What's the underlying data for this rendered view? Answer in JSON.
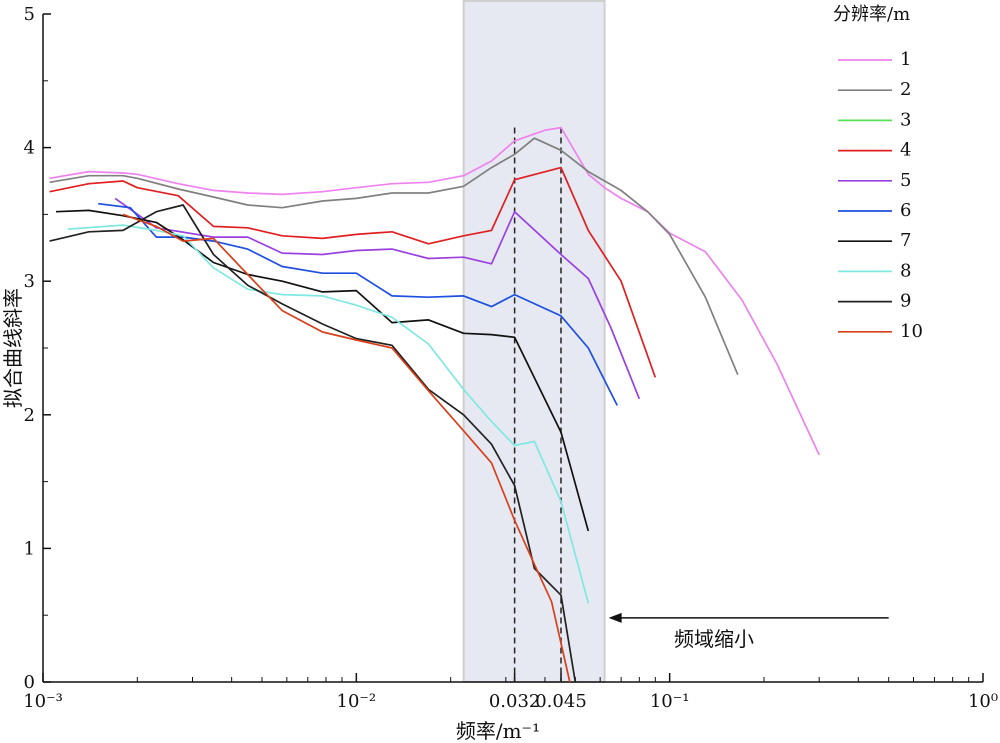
{
  "chart_data": {
    "type": "line",
    "x_scale": "log",
    "xlim": [
      0.001,
      1
    ],
    "ylim": [
      0,
      5
    ],
    "xlabel": "频率/m⁻¹",
    "ylabel": "拟合曲线斜率",
    "legend_title": "分辨率/m",
    "legend_position": "top-right",
    "grid": false,
    "x_ticks": [
      {
        "value": 0.001,
        "label": "10⁻³"
      },
      {
        "value": 0.01,
        "label": "10⁻²"
      },
      {
        "value": 0.032,
        "label": "0.032"
      },
      {
        "value": 0.045,
        "label": "0.045"
      },
      {
        "value": 0.1,
        "label": "10⁻¹"
      },
      {
        "value": 1,
        "label": "10⁰"
      }
    ],
    "y_ticks": [
      0,
      1,
      2,
      3,
      4,
      5
    ],
    "highlight_band": {
      "x_from": 0.022,
      "x_to": 0.062,
      "color": "#e6e9f2"
    },
    "vlines": [
      0.032,
      0.045
    ],
    "annotation": {
      "text": "频域缩小",
      "arrow_from_x": 0.5,
      "arrow_to_x": 0.062,
      "y": 0.48
    },
    "series": [
      {
        "name": "1",
        "color": "#ee82ee",
        "points": [
          [
            0.00105,
            3.77
          ],
          [
            0.0014,
            3.82
          ],
          [
            0.0018,
            3.81
          ],
          [
            0.002,
            3.8
          ],
          [
            0.0027,
            3.73
          ],
          [
            0.0035,
            3.68
          ],
          [
            0.0045,
            3.66
          ],
          [
            0.0058,
            3.65
          ],
          [
            0.0078,
            3.67
          ],
          [
            0.01,
            3.7
          ],
          [
            0.013,
            3.73
          ],
          [
            0.017,
            3.74
          ],
          [
            0.022,
            3.79
          ],
          [
            0.027,
            3.9
          ],
          [
            0.032,
            4.05
          ],
          [
            0.04,
            4.13
          ],
          [
            0.045,
            4.15
          ],
          [
            0.055,
            3.8
          ],
          [
            0.062,
            3.7
          ],
          [
            0.07,
            3.62
          ],
          [
            0.085,
            3.52
          ],
          [
            0.1,
            3.36
          ],
          [
            0.13,
            3.22
          ],
          [
            0.17,
            2.86
          ],
          [
            0.22,
            2.38
          ],
          [
            0.3,
            1.7
          ]
        ]
      },
      {
        "name": "2",
        "color": "#808080",
        "points": [
          [
            0.00105,
            3.74
          ],
          [
            0.0014,
            3.79
          ],
          [
            0.0018,
            3.79
          ],
          [
            0.002,
            3.77
          ],
          [
            0.0027,
            3.69
          ],
          [
            0.0035,
            3.63
          ],
          [
            0.0045,
            3.57
          ],
          [
            0.0058,
            3.55
          ],
          [
            0.0078,
            3.6
          ],
          [
            0.01,
            3.62
          ],
          [
            0.013,
            3.66
          ],
          [
            0.017,
            3.66
          ],
          [
            0.022,
            3.71
          ],
          [
            0.027,
            3.85
          ],
          [
            0.032,
            3.95
          ],
          [
            0.037,
            4.07
          ],
          [
            0.045,
            3.98
          ],
          [
            0.055,
            3.82
          ],
          [
            0.07,
            3.68
          ],
          [
            0.085,
            3.52
          ],
          [
            0.1,
            3.35
          ],
          [
            0.13,
            2.88
          ],
          [
            0.165,
            2.3
          ]
        ]
      },
      {
        "name": "3",
        "color": "#55e055",
        "points": []
      },
      {
        "name": "4",
        "color": "#e02020",
        "points": [
          [
            0.00105,
            3.67
          ],
          [
            0.0014,
            3.73
          ],
          [
            0.0018,
            3.75
          ],
          [
            0.002,
            3.7
          ],
          [
            0.0027,
            3.64
          ],
          [
            0.0035,
            3.41
          ],
          [
            0.0045,
            3.4
          ],
          [
            0.0058,
            3.34
          ],
          [
            0.0078,
            3.32
          ],
          [
            0.01,
            3.35
          ],
          [
            0.013,
            3.37
          ],
          [
            0.017,
            3.28
          ],
          [
            0.022,
            3.34
          ],
          [
            0.027,
            3.38
          ],
          [
            0.032,
            3.76
          ],
          [
            0.045,
            3.85
          ],
          [
            0.055,
            3.38
          ],
          [
            0.07,
            3.0
          ],
          [
            0.09,
            2.28
          ]
        ]
      },
      {
        "name": "5",
        "color": "#9b40e0",
        "points": [
          [
            0.0017,
            3.62
          ],
          [
            0.0023,
            3.4
          ],
          [
            0.0035,
            3.33
          ],
          [
            0.0045,
            3.33
          ],
          [
            0.0058,
            3.21
          ],
          [
            0.0078,
            3.2
          ],
          [
            0.01,
            3.23
          ],
          [
            0.013,
            3.24
          ],
          [
            0.017,
            3.17
          ],
          [
            0.022,
            3.18
          ],
          [
            0.027,
            3.13
          ],
          [
            0.032,
            3.52
          ],
          [
            0.045,
            3.2
          ],
          [
            0.055,
            3.02
          ],
          [
            0.065,
            2.65
          ],
          [
            0.08,
            2.12
          ]
        ]
      },
      {
        "name": "6",
        "color": "#1d4fe0",
        "points": [
          [
            0.0015,
            3.58
          ],
          [
            0.0019,
            3.55
          ],
          [
            0.0023,
            3.33
          ],
          [
            0.0028,
            3.33
          ],
          [
            0.0035,
            3.3
          ],
          [
            0.0045,
            3.24
          ],
          [
            0.0058,
            3.11
          ],
          [
            0.0078,
            3.06
          ],
          [
            0.01,
            3.06
          ],
          [
            0.013,
            2.89
          ],
          [
            0.017,
            2.88
          ],
          [
            0.022,
            2.89
          ],
          [
            0.027,
            2.81
          ],
          [
            0.032,
            2.9
          ],
          [
            0.045,
            2.74
          ],
          [
            0.055,
            2.5
          ],
          [
            0.068,
            2.07
          ]
        ]
      },
      {
        "name": "7",
        "color": "#111111",
        "points": [
          [
            0.0011,
            3.52
          ],
          [
            0.0014,
            3.53
          ],
          [
            0.0018,
            3.49
          ],
          [
            0.0023,
            3.44
          ],
          [
            0.0028,
            3.31
          ],
          [
            0.0035,
            3.14
          ],
          [
            0.0045,
            3.05
          ],
          [
            0.0058,
            3.0
          ],
          [
            0.0078,
            2.92
          ],
          [
            0.01,
            2.93
          ],
          [
            0.013,
            2.69
          ],
          [
            0.017,
            2.71
          ],
          [
            0.022,
            2.61
          ],
          [
            0.027,
            2.6
          ],
          [
            0.032,
            2.58
          ],
          [
            0.045,
            1.87
          ],
          [
            0.055,
            1.13
          ]
        ]
      },
      {
        "name": "8",
        "color": "#7fe8e0",
        "points": [
          [
            0.0012,
            3.39
          ],
          [
            0.0018,
            3.42
          ],
          [
            0.0023,
            3.38
          ],
          [
            0.0028,
            3.34
          ],
          [
            0.0035,
            3.1
          ],
          [
            0.0045,
            2.94
          ],
          [
            0.0058,
            2.9
          ],
          [
            0.0078,
            2.89
          ],
          [
            0.01,
            2.82
          ],
          [
            0.013,
            2.73
          ],
          [
            0.017,
            2.53
          ],
          [
            0.022,
            2.19
          ],
          [
            0.027,
            1.95
          ],
          [
            0.032,
            1.77
          ],
          [
            0.037,
            1.8
          ],
          [
            0.045,
            1.35
          ],
          [
            0.055,
            0.59
          ]
        ]
      },
      {
        "name": "9",
        "color": "#222222",
        "points": [
          [
            0.00105,
            3.3
          ],
          [
            0.0014,
            3.37
          ],
          [
            0.0018,
            3.38
          ],
          [
            0.0023,
            3.52
          ],
          [
            0.0028,
            3.57
          ],
          [
            0.0035,
            3.2
          ],
          [
            0.0045,
            2.97
          ],
          [
            0.0058,
            2.83
          ],
          [
            0.0078,
            2.68
          ],
          [
            0.01,
            2.57
          ],
          [
            0.013,
            2.52
          ],
          [
            0.017,
            2.19
          ],
          [
            0.022,
            2.0
          ],
          [
            0.027,
            1.78
          ],
          [
            0.032,
            1.47
          ],
          [
            0.037,
            0.85
          ],
          [
            0.045,
            0.65
          ],
          [
            0.05,
            0.0
          ]
        ]
      },
      {
        "name": "10",
        "color": "#d8401a",
        "points": [
          [
            0.0018,
            3.5
          ],
          [
            0.0023,
            3.41
          ],
          [
            0.0028,
            3.3
          ],
          [
            0.0035,
            3.32
          ],
          [
            0.0045,
            3.05
          ],
          [
            0.0058,
            2.78
          ],
          [
            0.0078,
            2.62
          ],
          [
            0.01,
            2.56
          ],
          [
            0.013,
            2.5
          ],
          [
            0.017,
            2.18
          ],
          [
            0.022,
            1.88
          ],
          [
            0.027,
            1.64
          ],
          [
            0.032,
            1.21
          ],
          [
            0.037,
            0.88
          ],
          [
            0.042,
            0.6
          ],
          [
            0.048,
            0.0
          ]
        ]
      }
    ]
  }
}
